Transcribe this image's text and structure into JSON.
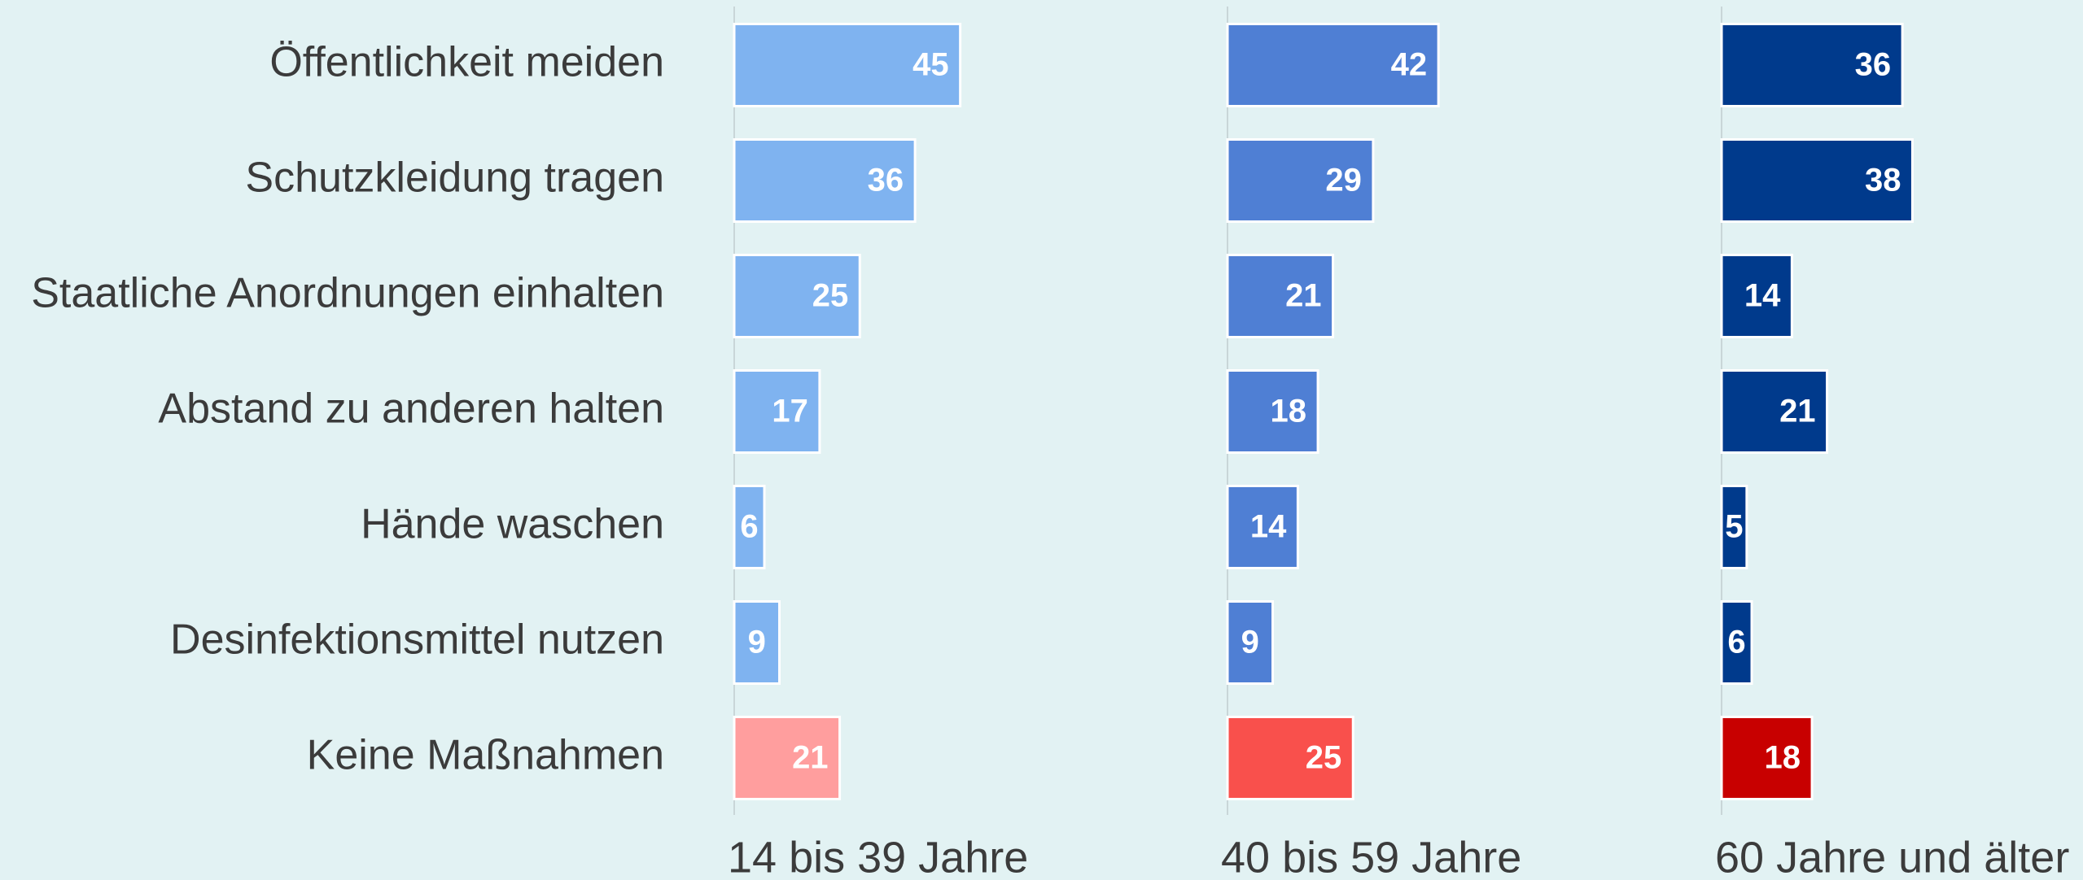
{
  "chart_data": {
    "type": "bar",
    "orientation": "horizontal",
    "categories": [
      "Öffentlichkeit meiden",
      "Schutzkleidung tragen",
      "Staatliche Anordnungen einhalten",
      "Abstand zu anderen halten",
      "Hände waschen",
      "Desinfektionsmittel nutzen",
      "Keine Maßnahmen"
    ],
    "series": [
      {
        "name": "14 bis 39 Jahre",
        "colors": [
          "#7fb3f0",
          "#7fb3f0",
          "#7fb3f0",
          "#7fb3f0",
          "#7fb3f0",
          "#7fb3f0",
          "#ff9e9e"
        ],
        "values": [
          45,
          36,
          25,
          17,
          6,
          9,
          21
        ]
      },
      {
        "name": "40 bis 59 Jahre",
        "colors": [
          "#4f7fd4",
          "#4f7fd4",
          "#4f7fd4",
          "#4f7fd4",
          "#4f7fd4",
          "#4f7fd4",
          "#f9504c"
        ],
        "values": [
          42,
          29,
          21,
          18,
          14,
          9,
          25
        ]
      },
      {
        "name": "60 Jahre und älter",
        "colors": [
          "#003a8c",
          "#003a8c",
          "#003a8c",
          "#003a8c",
          "#003a8c",
          "#003a8c",
          "#c80000"
        ],
        "values": [
          36,
          38,
          14,
          21,
          5,
          6,
          18
        ]
      }
    ]
  }
}
